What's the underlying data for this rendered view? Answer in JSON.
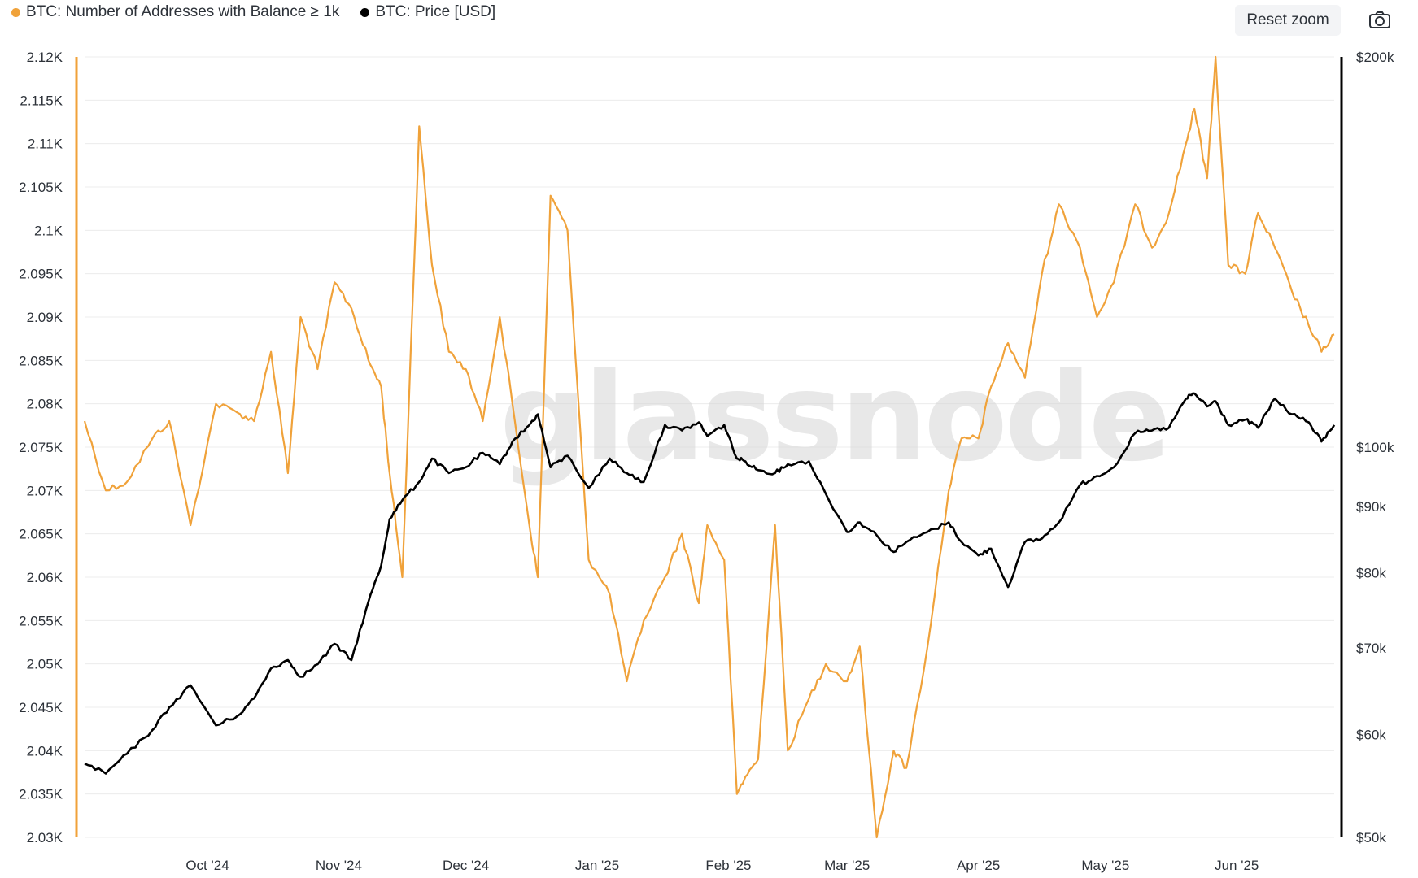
{
  "legend": {
    "series1": "BTC: Number of Addresses with Balance ≥ 1k",
    "series2": "BTC: Price [USD]"
  },
  "toolbar": {
    "reset_zoom_label": "Reset zoom",
    "camera_icon": "camera-icon"
  },
  "watermark": "glassnode",
  "colors": {
    "addresses": "#f0a23a",
    "price": "#000000",
    "grid": "#ececec",
    "text": "#2d3239"
  },
  "chart_data": {
    "type": "line",
    "x_range": [
      "2024-09-02",
      "2025-06-24"
    ],
    "x_ticks": [
      "Oct '24",
      "Nov '24",
      "Dec '24",
      "Jan '25",
      "Feb '25",
      "Mar '25",
      "Apr '25",
      "May '25",
      "Jun '25"
    ],
    "y_left": {
      "ticks": [
        "2.03K",
        "2.035K",
        "2.04K",
        "2.045K",
        "2.05K",
        "2.055K",
        "2.06K",
        "2.065K",
        "2.07K",
        "2.075K",
        "2.08K",
        "2.085K",
        "2.09K",
        "2.095K",
        "2.1K",
        "2.105K",
        "2.11K",
        "2.115K",
        "2.12K"
      ],
      "range": [
        2030,
        2120
      ]
    },
    "y_right": {
      "scale": "log",
      "ticks": [
        "$50k",
        "$60k",
        "$70k",
        "$80k",
        "$90k",
        "$100k",
        "$200k"
      ],
      "range": [
        50000,
        200000
      ]
    },
    "grid": true,
    "legend_position": "top-left",
    "series": [
      {
        "name": "BTC: Number of Addresses with Balance ≥ 1k",
        "axis": "left",
        "x": [
          "2024-09-02",
          "2024-09-07",
          "2024-09-12",
          "2024-09-18",
          "2024-09-22",
          "2024-09-27",
          "2024-10-03",
          "2024-10-08",
          "2024-10-12",
          "2024-10-16",
          "2024-10-20",
          "2024-10-23",
          "2024-10-27",
          "2024-10-31",
          "2024-11-04",
          "2024-11-08",
          "2024-11-11",
          "2024-11-13",
          "2024-11-16",
          "2024-11-20",
          "2024-11-23",
          "2024-11-27",
          "2024-12-01",
          "2024-12-05",
          "2024-12-09",
          "2024-12-12",
          "2024-12-16",
          "2024-12-18",
          "2024-12-21",
          "2024-12-25",
          "2024-12-30",
          "2025-01-04",
          "2025-01-08",
          "2025-01-12",
          "2025-01-17",
          "2025-01-21",
          "2025-01-25",
          "2025-01-27",
          "2025-01-31",
          "2025-02-03",
          "2025-02-05",
          "2025-02-08",
          "2025-02-12",
          "2025-02-15",
          "2025-02-20",
          "2025-02-24",
          "2025-03-01",
          "2025-03-04",
          "2025-03-08",
          "2025-03-12",
          "2025-03-15",
          "2025-03-20",
          "2025-03-25",
          "2025-03-28",
          "2025-04-01",
          "2025-04-04",
          "2025-04-08",
          "2025-04-12",
          "2025-04-16",
          "2025-04-20",
          "2025-04-25",
          "2025-04-29",
          "2025-05-03",
          "2025-05-08",
          "2025-05-12",
          "2025-05-16",
          "2025-05-20",
          "2025-05-22",
          "2025-05-25",
          "2025-05-27",
          "2025-05-30",
          "2025-06-03",
          "2025-06-06",
          "2025-06-10",
          "2025-06-14",
          "2025-06-18",
          "2025-06-21",
          "2025-06-24"
        ],
        "values": [
          2078,
          2070,
          2071,
          2076,
          2078,
          2066,
          2080,
          2079,
          2078,
          2086,
          2072,
          2090,
          2084,
          2094,
          2091,
          2085,
          2082,
          2072,
          2060,
          2112,
          2096,
          2086,
          2084,
          2078,
          2090,
          2080,
          2066,
          2060,
          2104,
          2100,
          2062,
          2058,
          2048,
          2055,
          2060,
          2065,
          2057,
          2066,
          2062,
          2035,
          2037,
          2039,
          2066,
          2040,
          2046,
          2050,
          2048,
          2052,
          2030,
          2040,
          2038,
          2052,
          2070,
          2076,
          2076,
          2082,
          2087,
          2083,
          2095,
          2103,
          2098,
          2090,
          2094,
          2103,
          2098,
          2102,
          2110,
          2114,
          2106,
          2120,
          2096,
          2095,
          2102,
          2098,
          2093,
          2089,
          2086,
          2088
        ]
      },
      {
        "name": "BTC: Price [USD]",
        "axis": "right",
        "x": [
          "2024-09-02",
          "2024-09-07",
          "2024-09-12",
          "2024-09-18",
          "2024-09-22",
          "2024-09-27",
          "2024-10-03",
          "2024-10-08",
          "2024-10-12",
          "2024-10-16",
          "2024-10-20",
          "2024-10-23",
          "2024-10-27",
          "2024-10-31",
          "2024-11-04",
          "2024-11-08",
          "2024-11-11",
          "2024-11-13",
          "2024-11-16",
          "2024-11-20",
          "2024-11-23",
          "2024-11-27",
          "2024-12-01",
          "2024-12-05",
          "2024-12-09",
          "2024-12-12",
          "2024-12-16",
          "2024-12-18",
          "2024-12-21",
          "2024-12-25",
          "2024-12-30",
          "2025-01-04",
          "2025-01-08",
          "2025-01-12",
          "2025-01-17",
          "2025-01-21",
          "2025-01-25",
          "2025-01-27",
          "2025-01-31",
          "2025-02-03",
          "2025-02-05",
          "2025-02-08",
          "2025-02-12",
          "2025-02-15",
          "2025-02-20",
          "2025-02-24",
          "2025-03-01",
          "2025-03-04",
          "2025-03-08",
          "2025-03-12",
          "2025-03-15",
          "2025-03-20",
          "2025-03-25",
          "2025-03-28",
          "2025-04-01",
          "2025-04-04",
          "2025-04-08",
          "2025-04-12",
          "2025-04-16",
          "2025-04-20",
          "2025-04-25",
          "2025-04-29",
          "2025-05-03",
          "2025-05-08",
          "2025-05-12",
          "2025-05-16",
          "2025-05-20",
          "2025-05-22",
          "2025-05-25",
          "2025-05-27",
          "2025-05-30",
          "2025-06-03",
          "2025-06-06",
          "2025-06-10",
          "2025-06-14",
          "2025-06-18",
          "2025-06-21",
          "2025-06-24"
        ],
        "values": [
          57000,
          56000,
          58000,
          60500,
          63000,
          65500,
          61000,
          62000,
          64000,
          67500,
          68500,
          66500,
          68000,
          70500,
          68500,
          76000,
          81000,
          88000,
          91000,
          94000,
          98000,
          95500,
          96500,
          99000,
          97000,
          101000,
          104000,
          106000,
          96500,
          98500,
          93000,
          98000,
          95500,
          94000,
          104000,
          103000,
          104500,
          102000,
          104000,
          98000,
          97500,
          96000,
          95500,
          97000,
          97500,
          92000,
          86000,
          87500,
          85500,
          83000,
          84500,
          86000,
          87500,
          84500,
          82500,
          83500,
          78000,
          84500,
          85000,
          87500,
          93500,
          95000,
          96500,
          102500,
          103000,
          103500,
          109000,
          110000,
          107500,
          108500,
          104000,
          105000,
          103500,
          109000,
          106000,
          104500,
          101000,
          104000
        ]
      }
    ]
  }
}
